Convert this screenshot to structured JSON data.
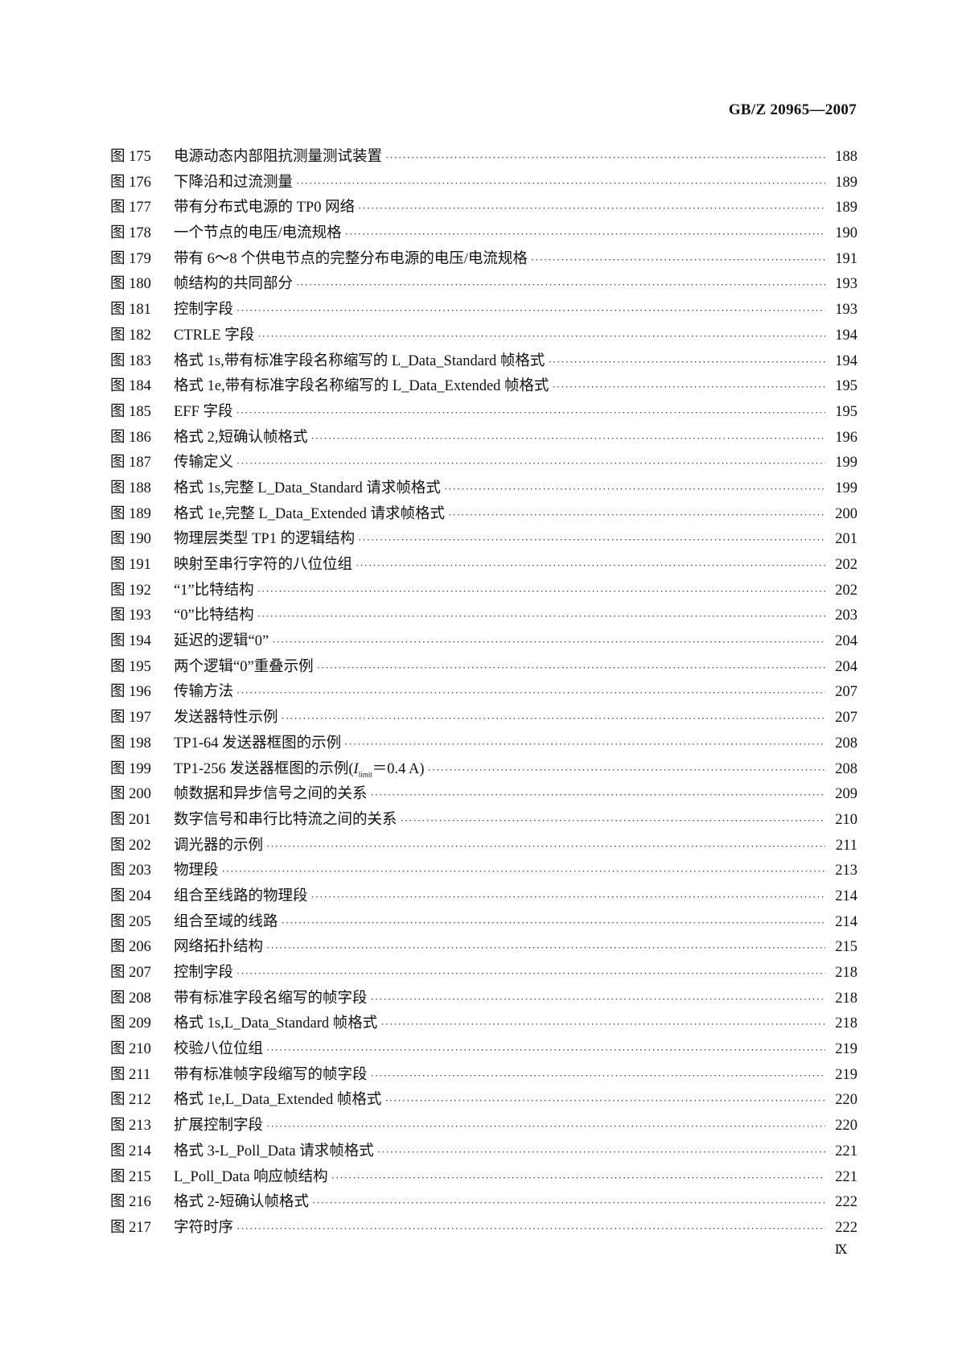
{
  "header": {
    "doc_id": "GB/Z 20965—2007"
  },
  "entries": [
    {
      "fig": "图 175",
      "title": "电源动态内部阻抗测量测试装置",
      "page": "188"
    },
    {
      "fig": "图 176",
      "title": "下降沿和过流测量",
      "page": "189"
    },
    {
      "fig": "图 177",
      "title": "带有分布式电源的 TP0 网络",
      "page": "189"
    },
    {
      "fig": "图 178",
      "title": "一个节点的电压/电流规格",
      "page": "190"
    },
    {
      "fig": "图 179",
      "title": "带有 6～8 个供电节点的完整分布电源的电压/电流规格",
      "page": "191"
    },
    {
      "fig": "图 180",
      "title": "帧结构的共同部分",
      "page": "193"
    },
    {
      "fig": "图 181",
      "title": "控制字段",
      "page": "193"
    },
    {
      "fig": "图 182",
      "title": "CTRLE 字段",
      "page": "194"
    },
    {
      "fig": "图 183",
      "title": "格式 1s,带有标准字段名称缩写的 L_Data_Standard 帧格式",
      "page": "194"
    },
    {
      "fig": "图 184",
      "title": "格式 1e,带有标准字段名称缩写的 L_Data_Extended 帧格式",
      "page": "195"
    },
    {
      "fig": "图 185",
      "title": "EFF 字段",
      "page": "195"
    },
    {
      "fig": "图 186",
      "title": "格式 2,短确认帧格式",
      "page": "196"
    },
    {
      "fig": "图 187",
      "title": "传输定义",
      "page": "199"
    },
    {
      "fig": "图 188",
      "title": "格式 1s,完整 L_Data_Standard 请求帧格式",
      "page": "199"
    },
    {
      "fig": "图 189",
      "title": "格式 1e,完整 L_Data_Extended 请求帧格式",
      "page": "200"
    },
    {
      "fig": "图 190",
      "title": "物理层类型 TP1 的逻辑结构",
      "page": "201"
    },
    {
      "fig": "图 191",
      "title": "映射至串行字符的八位位组",
      "page": "202"
    },
    {
      "fig": "图 192",
      "title": "“1”比特结构",
      "page": "202"
    },
    {
      "fig": "图 193",
      "title": "“0”比特结构",
      "page": "203"
    },
    {
      "fig": "图 194",
      "title": "延迟的逻辑“0”",
      "page": "204"
    },
    {
      "fig": "图 195",
      "title": "两个逻辑“0”重叠示例",
      "page": "204"
    },
    {
      "fig": "图 196",
      "title": "传输方法",
      "page": "207"
    },
    {
      "fig": "图 197",
      "title": "发送器特性示例",
      "page": "207"
    },
    {
      "fig": "图 198",
      "title": "TP1-64 发送器框图的示例",
      "page": "208"
    },
    {
      "fig": "图 199",
      "title": "TP1-256 发送器框图的示例(",
      "title_italic": "I",
      "title_sub": "limit",
      "title_suffix": "＝0.4 A)",
      "page": "208"
    },
    {
      "fig": "图 200",
      "title": "帧数据和异步信号之间的关系",
      "page": "209"
    },
    {
      "fig": "图 201",
      "title": "数字信号和串行比特流之间的关系",
      "page": "210"
    },
    {
      "fig": "图 202",
      "title": "调光器的示例",
      "page": "211"
    },
    {
      "fig": "图 203",
      "title": "物理段",
      "page": "213"
    },
    {
      "fig": "图 204",
      "title": "组合至线路的物理段",
      "page": "214"
    },
    {
      "fig": "图 205",
      "title": "组合至域的线路",
      "page": "214"
    },
    {
      "fig": "图 206",
      "title": "网络拓扑结构",
      "page": "215"
    },
    {
      "fig": "图 207",
      "title": "控制字段",
      "page": "218"
    },
    {
      "fig": "图 208",
      "title": "带有标准字段名缩写的帧字段",
      "page": "218"
    },
    {
      "fig": "图 209",
      "title": "格式 1s,L_Data_Standard 帧格式",
      "page": "218"
    },
    {
      "fig": "图 210",
      "title": "校验八位位组",
      "page": "219"
    },
    {
      "fig": "图 211",
      "title": "带有标准帧字段缩写的帧字段",
      "page": "219"
    },
    {
      "fig": "图 212",
      "title": "格式 1e,L_Data_Extended 帧格式",
      "page": "220"
    },
    {
      "fig": "图 213",
      "title": "扩展控制字段",
      "page": "220"
    },
    {
      "fig": "图 214",
      "title": "格式 3-L_Poll_Data 请求帧格式",
      "page": "221"
    },
    {
      "fig": "图 215",
      "title": "L_Poll_Data 响应帧结构",
      "page": "221"
    },
    {
      "fig": "图 216",
      "title": "格式 2-短确认帧格式",
      "page": "222"
    },
    {
      "fig": "图 217",
      "title": "字符时序",
      "page": "222"
    }
  ],
  "footer": {
    "page_number": "Ⅸ"
  }
}
